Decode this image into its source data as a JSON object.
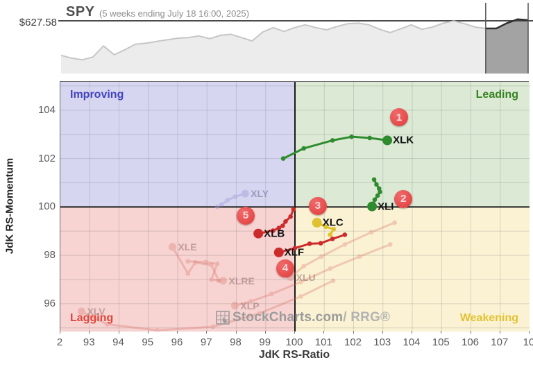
{
  "header": {
    "symbol": "SPY",
    "subtitle": "(5 weeks ending July 18 16:00, 2025)",
    "price_label": "$627.58"
  },
  "watermark": {
    "text": "StockCharts.com",
    "suffix": " / RRG®"
  },
  "chart_data": [
    {
      "type": "area",
      "name": "spy-price-sparkline",
      "symbol": "SPY",
      "period_label": "(5 weeks ending July 18 16:00, 2025)",
      "price_level_label": "$627.58",
      "values": [
        0.29,
        0.24,
        0.21,
        0.26,
        0.46,
        0.3,
        0.39,
        0.49,
        0.51,
        0.54,
        0.57,
        0.6,
        0.61,
        0.64,
        0.59,
        0.65,
        0.67,
        0.61,
        0.55,
        0.71,
        0.79,
        0.72,
        0.79,
        0.84,
        0.79,
        0.75,
        0.81,
        0.86,
        0.87,
        0.84,
        0.76,
        0.7,
        0.77,
        0.84,
        0.76,
        0.8,
        0.87,
        0.91,
        0.86,
        0.8,
        0.775,
        0.775,
        0.87,
        0.94,
        0.925
      ],
      "highlight_index": 40,
      "area_color": "#ececec",
      "line_color": "#c6c6c6",
      "highlight_area_color": "#a3a3a3",
      "highlight_line_color": "#2f2f2f",
      "price_line_color": "#4a4a4a",
      "cursor_line_color": "#555555"
    },
    {
      "type": "scatter",
      "name": "relative-rotation-graph",
      "xlabel": "JdK RS-Ratio",
      "ylabel": "JdK RS-Momentum",
      "xlim": [
        92,
        108
      ],
      "ylim": [
        94.85,
        105.17
      ],
      "grid": true,
      "x_grid": [
        93,
        94,
        95,
        96,
        97,
        98,
        99,
        101,
        102,
        103,
        104,
        105,
        106,
        107
      ],
      "y_grid": [
        95,
        96,
        97,
        98,
        99,
        101,
        102,
        103,
        104,
        105
      ],
      "center": [
        100,
        100
      ],
      "x_ticks": [
        {
          "value": 92,
          "label": "2"
        },
        {
          "value": 93,
          "label": "93"
        },
        {
          "value": 94,
          "label": "94"
        },
        {
          "value": 95,
          "label": "95"
        },
        {
          "value": 96,
          "label": "96"
        },
        {
          "value": 97,
          "label": "97"
        },
        {
          "value": 98,
          "label": "98"
        },
        {
          "value": 99,
          "label": "99"
        },
        {
          "value": 100,
          "label": "100"
        },
        {
          "value": 101,
          "label": "101"
        },
        {
          "value": 102,
          "label": "102"
        },
        {
          "value": 103,
          "label": "103"
        },
        {
          "value": 104,
          "label": "104"
        },
        {
          "value": 105,
          "label": "105"
        },
        {
          "value": 106,
          "label": "106"
        },
        {
          "value": 107,
          "label": "107"
        },
        {
          "value": 108,
          "label": "10"
        }
      ],
      "y_ticks": [
        {
          "value": 104,
          "label": "104"
        },
        {
          "value": 102,
          "label": "102"
        },
        {
          "value": 100,
          "label": "100"
        },
        {
          "value": 98,
          "label": "98"
        },
        {
          "value": 96,
          "label": "96"
        }
      ],
      "quadrants": [
        {
          "name": "Improving",
          "color": "#4343bd",
          "bg": "#d6d6f1",
          "position": "top-left"
        },
        {
          "name": "Leading",
          "color": "#35821f",
          "bg": "#dcead5",
          "position": "top-right"
        },
        {
          "name": "Lagging",
          "color": "#e2453c",
          "bg": "#f7d3d1",
          "position": "bottom-left"
        },
        {
          "name": "Weakening",
          "color": "#e3c231",
          "bg": "#faf2d3",
          "position": "bottom-right"
        }
      ],
      "series": [
        {
          "symbol": "XLV",
          "faded": true,
          "opacity": 0.3,
          "color": "#d96a60",
          "label_color": "rgba(150,110,110,0.55)",
          "trail": [
            [
              101.3,
              96.95
            ],
            [
              100.2,
              96.3
            ],
            [
              98.8,
              95.6
            ],
            [
              97.2,
              95.05
            ],
            [
              95.3,
              94.9
            ],
            [
              93.6,
              95.15
            ],
            [
              92.72,
              95.68
            ]
          ]
        },
        {
          "symbol": "XLP",
          "faded": true,
          "opacity": 0.3,
          "color": "#d96a60",
          "label_color": "rgba(150,110,110,0.55)",
          "trail": [
            [
              103.25,
              98.45
            ],
            [
              102.2,
              97.95
            ],
            [
              101.2,
              97.45
            ],
            [
              100.2,
              96.9
            ],
            [
              99.2,
              96.4
            ],
            [
              98.5,
              96.1
            ],
            [
              97.95,
              95.92
            ]
          ]
        },
        {
          "symbol": "XLU",
          "faded": true,
          "opacity": 0.3,
          "color": "#d96a60",
          "label_color": "rgba(150,110,110,0.55)",
          "trail": [
            [
              103.4,
              99.35
            ],
            [
              102.6,
              98.95
            ],
            [
              101.7,
              98.45
            ],
            [
              100.9,
              97.95
            ],
            [
              100.3,
              97.55
            ],
            [
              99.85,
              97.1
            ]
          ]
        },
        {
          "symbol": "XLRE",
          "faded": true,
          "opacity": 0.3,
          "color": "#d96a60",
          "label_color": "rgba(150,110,110,0.55)",
          "trail": [
            [
              96.35,
              97.75
            ],
            [
              96.95,
              97.72
            ],
            [
              97.35,
              97.65
            ],
            [
              97.15,
              97.0
            ],
            [
              97.55,
              96.95
            ]
          ]
        },
        {
          "symbol": "XLE",
          "faded": true,
          "opacity": 0.3,
          "color": "#d96a60",
          "label_color": "rgba(150,110,110,0.55)",
          "trail": [
            [
              97.4,
              96.95
            ],
            [
              97.15,
              97.6
            ],
            [
              96.6,
              97.7
            ],
            [
              96.35,
              97.25
            ],
            [
              95.82,
              98.35
            ]
          ]
        },
        {
          "symbol": "XLY",
          "faded": true,
          "opacity": 0.45,
          "color": "#a39bd6",
          "label_color": "rgba(120,115,155,0.6)",
          "trail": [
            [
              97.35,
              100.0
            ],
            [
              97.5,
              100.1
            ],
            [
              97.7,
              100.28
            ],
            [
              97.95,
              100.42
            ],
            [
              98.3,
              100.55
            ]
          ]
        },
        {
          "symbol": "XLB",
          "faded": false,
          "color": "#cc2b2b",
          "label_color": "#101010",
          "trail": [
            [
              99.95,
              99.9
            ],
            [
              99.85,
              99.6
            ],
            [
              99.68,
              99.4
            ],
            [
              99.58,
              99.22
            ],
            [
              99.45,
              99.13
            ],
            [
              99.25,
              99.02
            ],
            [
              98.75,
              98.9
            ]
          ]
        },
        {
          "symbol": "XLF",
          "faded": false,
          "color": "#cc2b2b",
          "label_color": "#101010",
          "trail": [
            [
              101.7,
              98.85
            ],
            [
              101.28,
              98.68
            ],
            [
              100.88,
              98.5
            ],
            [
              100.5,
              98.48
            ],
            [
              100.0,
              98.3
            ],
            [
              99.45,
              98.12
            ]
          ]
        },
        {
          "symbol": "XLC",
          "faded": false,
          "color": "#dfc22f",
          "label_color": "#101010",
          "trail": [
            [
              101.2,
              98.85
            ],
            [
              101.32,
              99.08
            ],
            [
              101.05,
              99.18
            ],
            [
              100.75,
              99.35
            ]
          ]
        },
        {
          "symbol": "XLI",
          "faded": false,
          "color": "#2e8b2e",
          "label_color": "#101010",
          "trail": [
            [
              102.7,
              101.13
            ],
            [
              102.78,
              100.93
            ],
            [
              102.87,
              100.76
            ],
            [
              102.9,
              100.62
            ],
            [
              102.82,
              100.47
            ],
            [
              102.72,
              100.3
            ],
            [
              102.63,
              100.02
            ]
          ]
        },
        {
          "symbol": "XLK",
          "faded": false,
          "color": "#2e8b2e",
          "label_color": "#101010",
          "trail": [
            [
              99.6,
              102.0
            ],
            [
              100.3,
              102.42
            ],
            [
              101.28,
              102.75
            ],
            [
              101.93,
              102.9
            ],
            [
              102.55,
              102.85
            ],
            [
              103.15,
              102.75
            ]
          ]
        }
      ],
      "annotations": [
        {
          "n": "1",
          "x": 103.55,
          "y": 103.7
        },
        {
          "n": "2",
          "x": 103.7,
          "y": 100.33
        },
        {
          "n": "3",
          "x": 100.78,
          "y": 100.05
        },
        {
          "n": "4",
          "x": 99.67,
          "y": 97.47
        },
        {
          "n": "5",
          "x": 98.32,
          "y": 99.65
        }
      ]
    }
  ]
}
